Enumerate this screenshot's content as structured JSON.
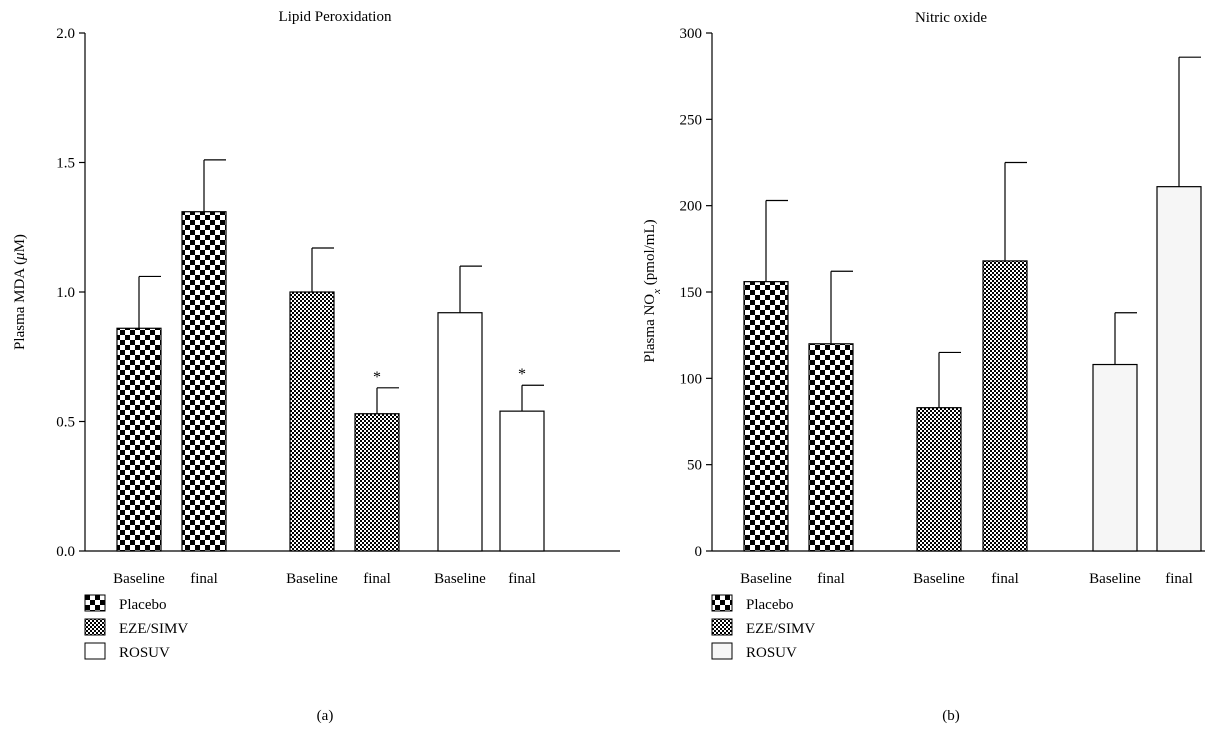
{
  "chart_data": [
    {
      "type": "bar",
      "panel_label": "(a)",
      "title": "Lipid Peroxidation",
      "ylabel_pre": "Plasma MDA (",
      "ylabel_unit": "μ",
      "ylabel_post": "M)",
      "ylim": [
        0,
        2.0
      ],
      "yticks": [
        0.0,
        0.5,
        1.0,
        1.5,
        2.0
      ],
      "ytick_labels": [
        "0.0",
        "0.5",
        "1.0",
        "1.5",
        "2.0"
      ],
      "categories": [
        "Baseline",
        "final",
        "Baseline",
        "final",
        "Baseline",
        "final"
      ],
      "groups": [
        "Placebo",
        "Placebo",
        "EZE/SIMV",
        "EZE/SIMV",
        "ROSUV",
        "ROSUV"
      ],
      "values": [
        0.86,
        1.31,
        1.0,
        0.53,
        0.92,
        0.54
      ],
      "errors": [
        0.2,
        0.2,
        0.17,
        0.1,
        0.18,
        0.1
      ],
      "annotations": [
        "",
        "",
        "",
        "*",
        "",
        "*"
      ],
      "legend": {
        "position": "bottom-left",
        "entries": [
          {
            "label": "Placebo",
            "pattern": "checker-large"
          },
          {
            "label": "EZE/SIMV",
            "pattern": "checker-small"
          },
          {
            "label": "ROSUV",
            "pattern": "white"
          }
        ]
      },
      "grid": false
    },
    {
      "type": "bar",
      "panel_label": "(b)",
      "title": "Nitric oxide",
      "ylabel_pre": "Plasma NO",
      "ylabel_sub": "x",
      "ylabel_post": " (pmol/mL)",
      "ylim": [
        0,
        300
      ],
      "yticks": [
        0,
        50,
        100,
        150,
        200,
        250,
        300
      ],
      "ytick_labels": [
        "0",
        "50",
        "100",
        "150",
        "200",
        "250",
        "300"
      ],
      "categories": [
        "Baseline",
        "final",
        "Baseline",
        "final",
        "Baseline",
        "final"
      ],
      "groups": [
        "Placebo",
        "Placebo",
        "EZE/SIMV",
        "EZE/SIMV",
        "ROSUV",
        "ROSUV"
      ],
      "values": [
        156,
        120,
        83,
        168,
        108,
        211
      ],
      "errors": [
        47,
        42,
        32,
        57,
        30,
        75
      ],
      "annotations": [
        "",
        "",
        "",
        "",
        "",
        ""
      ],
      "legend": {
        "position": "bottom-left",
        "entries": [
          {
            "label": "Placebo",
            "pattern": "checker-large"
          },
          {
            "label": "EZE/SIMV",
            "pattern": "checker-small"
          },
          {
            "label": "ROSUV",
            "pattern": "white-gray"
          }
        ]
      },
      "grid": false
    }
  ]
}
